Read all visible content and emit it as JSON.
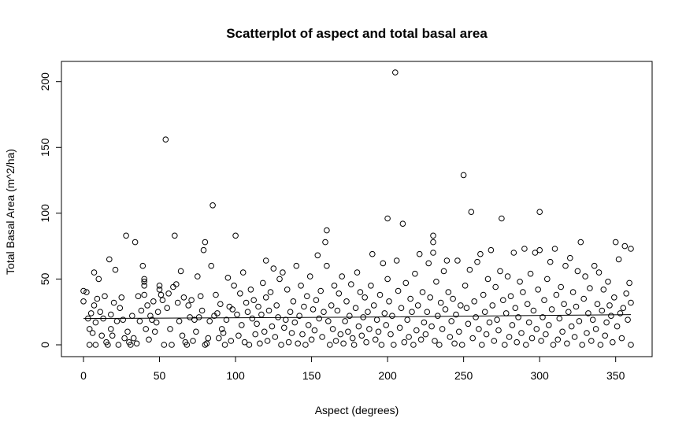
{
  "chart_data": {
    "type": "scatter",
    "title": "Scatterplot of aspect and total basal area",
    "xlabel": "Aspect (degrees)",
    "ylabel": "Total Basal Area (m^2/ha)",
    "xlim": [
      0,
      360
    ],
    "ylim": [
      0,
      207
    ],
    "x_ticks": [
      0,
      50,
      100,
      150,
      200,
      250,
      300,
      350
    ],
    "y_ticks": [
      0,
      50,
      100,
      150,
      200
    ],
    "grid": false,
    "legend": "none",
    "points": [
      [
        0,
        33
      ],
      [
        0,
        41
      ],
      [
        2,
        40
      ],
      [
        3,
        20
      ],
      [
        4,
        0
      ],
      [
        4,
        12
      ],
      [
        5,
        24
      ],
      [
        6,
        9
      ],
      [
        7,
        55
      ],
      [
        7,
        30
      ],
      [
        8,
        0
      ],
      [
        8,
        17
      ],
      [
        9,
        35
      ],
      [
        10,
        50
      ],
      [
        11,
        25
      ],
      [
        12,
        7
      ],
      [
        13,
        20
      ],
      [
        14,
        37
      ],
      [
        15,
        2
      ],
      [
        16,
        0
      ],
      [
        17,
        65
      ],
      [
        18,
        23
      ],
      [
        18,
        12
      ],
      [
        19,
        7
      ],
      [
        20,
        32
      ],
      [
        21,
        57
      ],
      [
        22,
        18
      ],
      [
        23,
        0
      ],
      [
        24,
        28
      ],
      [
        25,
        36
      ],
      [
        26,
        19
      ],
      [
        27,
        5
      ],
      [
        28,
        83
      ],
      [
        29,
        10
      ],
      [
        30,
        2
      ],
      [
        31,
        0
      ],
      [
        32,
        22
      ],
      [
        33,
        5
      ],
      [
        34,
        78
      ],
      [
        35,
        1
      ],
      [
        36,
        37
      ],
      [
        37,
        18
      ],
      [
        38,
        26
      ],
      [
        39,
        60
      ],
      [
        40,
        48
      ],
      [
        40,
        45
      ],
      [
        40,
        50
      ],
      [
        40,
        38
      ],
      [
        41,
        12
      ],
      [
        42,
        30
      ],
      [
        43,
        4
      ],
      [
        44,
        22
      ],
      [
        45,
        19
      ],
      [
        46,
        33
      ],
      [
        47,
        10
      ],
      [
        48,
        17
      ],
      [
        49,
        25
      ],
      [
        50,
        45
      ],
      [
        50,
        42
      ],
      [
        51,
        38
      ],
      [
        52,
        34
      ],
      [
        53,
        0
      ],
      [
        54,
        156
      ],
      [
        55,
        28
      ],
      [
        56,
        39
      ],
      [
        57,
        12
      ],
      [
        58,
        0
      ],
      [
        59,
        44
      ],
      [
        60,
        83
      ],
      [
        61,
        46
      ],
      [
        62,
        32
      ],
      [
        63,
        18
      ],
      [
        64,
        56
      ],
      [
        65,
        7
      ],
      [
        66,
        36
      ],
      [
        67,
        2
      ],
      [
        68,
        0
      ],
      [
        69,
        30
      ],
      [
        70,
        21
      ],
      [
        71,
        34
      ],
      [
        72,
        3
      ],
      [
        73,
        19
      ],
      [
        74,
        10
      ],
      [
        75,
        52
      ],
      [
        76,
        21
      ],
      [
        77,
        37
      ],
      [
        78,
        26
      ],
      [
        79,
        72
      ],
      [
        80,
        78
      ],
      [
        80,
        0
      ],
      [
        81,
        1
      ],
      [
        82,
        5
      ],
      [
        83,
        18
      ],
      [
        84,
        60
      ],
      [
        85,
        106
      ],
      [
        86,
        22
      ],
      [
        87,
        38
      ],
      [
        88,
        24
      ],
      [
        89,
        5
      ],
      [
        90,
        31
      ],
      [
        91,
        12
      ],
      [
        92,
        9
      ],
      [
        93,
        0
      ],
      [
        94,
        19
      ],
      [
        95,
        51
      ],
      [
        96,
        29
      ],
      [
        97,
        3
      ],
      [
        98,
        27
      ],
      [
        99,
        45
      ],
      [
        100,
        83
      ],
      [
        101,
        23
      ],
      [
        102,
        7
      ],
      [
        103,
        39
      ],
      [
        104,
        15
      ],
      [
        105,
        55
      ],
      [
        106,
        2
      ],
      [
        107,
        32
      ],
      [
        108,
        25
      ],
      [
        109,
        0
      ],
      [
        110,
        42
      ],
      [
        111,
        20
      ],
      [
        112,
        34
      ],
      [
        113,
        8
      ],
      [
        114,
        16
      ],
      [
        115,
        29
      ],
      [
        116,
        1
      ],
      [
        117,
        23
      ],
      [
        118,
        47
      ],
      [
        119,
        10
      ],
      [
        120,
        36
      ],
      [
        120,
        64
      ],
      [
        121,
        3
      ],
      [
        122,
        26
      ],
      [
        123,
        40
      ],
      [
        124,
        14
      ],
      [
        125,
        58
      ],
      [
        126,
        6
      ],
      [
        127,
        30
      ],
      [
        128,
        21
      ],
      [
        129,
        50
      ],
      [
        130,
        0
      ],
      [
        131,
        55
      ],
      [
        132,
        13
      ],
      [
        133,
        19
      ],
      [
        134,
        42
      ],
      [
        135,
        2
      ],
      [
        136,
        25
      ],
      [
        137,
        9
      ],
      [
        138,
        33
      ],
      [
        139,
        17
      ],
      [
        140,
        60
      ],
      [
        141,
        1
      ],
      [
        142,
        22
      ],
      [
        143,
        45
      ],
      [
        144,
        8
      ],
      [
        145,
        29
      ],
      [
        146,
        0
      ],
      [
        147,
        37
      ],
      [
        148,
        15
      ],
      [
        149,
        52
      ],
      [
        150,
        4
      ],
      [
        151,
        27
      ],
      [
        152,
        11
      ],
      [
        153,
        34
      ],
      [
        154,
        68
      ],
      [
        155,
        20
      ],
      [
        156,
        41
      ],
      [
        157,
        6
      ],
      [
        158,
        25
      ],
      [
        159,
        78
      ],
      [
        160,
        87
      ],
      [
        160,
        60
      ],
      [
        161,
        18
      ],
      [
        162,
        0
      ],
      [
        163,
        30
      ],
      [
        164,
        12
      ],
      [
        165,
        45
      ],
      [
        166,
        3
      ],
      [
        167,
        26
      ],
      [
        168,
        39
      ],
      [
        169,
        8
      ],
      [
        170,
        52
      ],
      [
        171,
        1
      ],
      [
        172,
        18
      ],
      [
        173,
        33
      ],
      [
        174,
        10
      ],
      [
        175,
        22
      ],
      [
        176,
        46
      ],
      [
        177,
        5
      ],
      [
        178,
        0
      ],
      [
        179,
        28
      ],
      [
        180,
        55
      ],
      [
        181,
        14
      ],
      [
        182,
        40
      ],
      [
        183,
        7
      ],
      [
        184,
        21
      ],
      [
        185,
        36
      ],
      [
        186,
        2
      ],
      [
        187,
        25
      ],
      [
        188,
        12
      ],
      [
        189,
        45
      ],
      [
        190,
        69
      ],
      [
        191,
        30
      ],
      [
        192,
        4
      ],
      [
        193,
        19
      ],
      [
        194,
        10
      ],
      [
        195,
        38
      ],
      [
        196,
        0
      ],
      [
        197,
        62
      ],
      [
        198,
        24
      ],
      [
        199,
        15
      ],
      [
        200,
        96
      ],
      [
        200,
        50
      ],
      [
        201,
        33
      ],
      [
        202,
        8
      ],
      [
        203,
        22
      ],
      [
        204,
        0
      ],
      [
        205,
        207
      ],
      [
        206,
        64
      ],
      [
        207,
        41
      ],
      [
        208,
        13
      ],
      [
        209,
        28
      ],
      [
        210,
        92
      ],
      [
        211,
        2
      ],
      [
        212,
        47
      ],
      [
        213,
        19
      ],
      [
        214,
        6
      ],
      [
        215,
        35
      ],
      [
        216,
        25
      ],
      [
        217,
        0
      ],
      [
        218,
        54
      ],
      [
        219,
        11
      ],
      [
        220,
        30
      ],
      [
        221,
        69
      ],
      [
        222,
        4
      ],
      [
        223,
        40
      ],
      [
        224,
        17
      ],
      [
        225,
        8
      ],
      [
        226,
        25
      ],
      [
        227,
        62
      ],
      [
        228,
        36
      ],
      [
        229,
        14
      ],
      [
        230,
        83
      ],
      [
        230,
        78
      ],
      [
        230,
        70
      ],
      [
        231,
        3
      ],
      [
        232,
        48
      ],
      [
        233,
        22
      ],
      [
        234,
        0
      ],
      [
        235,
        32
      ],
      [
        236,
        12
      ],
      [
        237,
        56
      ],
      [
        238,
        27
      ],
      [
        239,
        64
      ],
      [
        240,
        40
      ],
      [
        241,
        6
      ],
      [
        242,
        18
      ],
      [
        243,
        35
      ],
      [
        244,
        1
      ],
      [
        245,
        23
      ],
      [
        246,
        64
      ],
      [
        247,
        10
      ],
      [
        248,
        30
      ],
      [
        249,
        0
      ],
      [
        250,
        129
      ],
      [
        251,
        45
      ],
      [
        252,
        28
      ],
      [
        253,
        16
      ],
      [
        254,
        57
      ],
      [
        255,
        101
      ],
      [
        256,
        5
      ],
      [
        257,
        33
      ],
      [
        258,
        21
      ],
      [
        259,
        63
      ],
      [
        260,
        12
      ],
      [
        261,
        69
      ],
      [
        262,
        0
      ],
      [
        263,
        38
      ],
      [
        264,
        25
      ],
      [
        265,
        8
      ],
      [
        266,
        50
      ],
      [
        267,
        17
      ],
      [
        268,
        72
      ],
      [
        269,
        30
      ],
      [
        270,
        3
      ],
      [
        271,
        44
      ],
      [
        272,
        19
      ],
      [
        273,
        11
      ],
      [
        274,
        56
      ],
      [
        275,
        96
      ],
      [
        276,
        34
      ],
      [
        277,
        0
      ],
      [
        278,
        24
      ],
      [
        279,
        52
      ],
      [
        280,
        6
      ],
      [
        281,
        37
      ],
      [
        282,
        15
      ],
      [
        283,
        70
      ],
      [
        284,
        28
      ],
      [
        285,
        2
      ],
      [
        286,
        21
      ],
      [
        287,
        48
      ],
      [
        288,
        9
      ],
      [
        289,
        40
      ],
      [
        290,
        73
      ],
      [
        291,
        0
      ],
      [
        292,
        31
      ],
      [
        293,
        17
      ],
      [
        294,
        54
      ],
      [
        295,
        5
      ],
      [
        296,
        26
      ],
      [
        297,
        70
      ],
      [
        298,
        12
      ],
      [
        299,
        42
      ],
      [
        300,
        101
      ],
      [
        300,
        72
      ],
      [
        301,
        3
      ],
      [
        302,
        21
      ],
      [
        303,
        34
      ],
      [
        304,
        8
      ],
      [
        305,
        50
      ],
      [
        306,
        15
      ],
      [
        307,
        63
      ],
      [
        308,
        27
      ],
      [
        309,
        0
      ],
      [
        310,
        73
      ],
      [
        311,
        38
      ],
      [
        312,
        4
      ],
      [
        313,
        20
      ],
      [
        314,
        44
      ],
      [
        315,
        10
      ],
      [
        316,
        31
      ],
      [
        317,
        60
      ],
      [
        318,
        1
      ],
      [
        319,
        25
      ],
      [
        320,
        66
      ],
      [
        321,
        14
      ],
      [
        322,
        40
      ],
      [
        323,
        6
      ],
      [
        324,
        29
      ],
      [
        325,
        56
      ],
      [
        326,
        18
      ],
      [
        327,
        78
      ],
      [
        328,
        0
      ],
      [
        329,
        35
      ],
      [
        330,
        52
      ],
      [
        331,
        9
      ],
      [
        332,
        24
      ],
      [
        333,
        43
      ],
      [
        334,
        3
      ],
      [
        335,
        19
      ],
      [
        336,
        60
      ],
      [
        337,
        12
      ],
      [
        338,
        31
      ],
      [
        339,
        55
      ],
      [
        340,
        0
      ],
      [
        341,
        26
      ],
      [
        342,
        42
      ],
      [
        343,
        7
      ],
      [
        344,
        17
      ],
      [
        345,
        48
      ],
      [
        346,
        30
      ],
      [
        347,
        22
      ],
      [
        348,
        2
      ],
      [
        349,
        36
      ],
      [
        350,
        78
      ],
      [
        351,
        14
      ],
      [
        352,
        65
      ],
      [
        353,
        24
      ],
      [
        354,
        5
      ],
      [
        355,
        28
      ],
      [
        356,
        75
      ],
      [
        357,
        39
      ],
      [
        358,
        19
      ],
      [
        359,
        47
      ],
      [
        360,
        73
      ],
      [
        360,
        32
      ],
      [
        360,
        0
      ]
    ],
    "trend_line": [
      [
        0,
        20
      ],
      [
        90,
        20.5
      ],
      [
        180,
        21
      ],
      [
        270,
        22
      ],
      [
        360,
        23
      ]
    ]
  }
}
